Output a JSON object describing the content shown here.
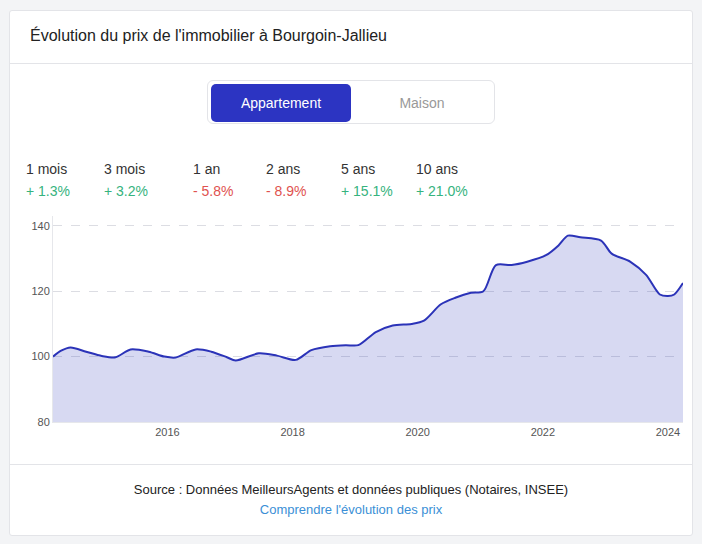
{
  "header": {
    "title": "Évolution du prix de l'immobilier à Bourgoin-Jallieu"
  },
  "tabs": {
    "items": [
      "Appartement",
      "Maison"
    ],
    "active": "Appartement"
  },
  "stats": [
    {
      "label": "1 mois",
      "value": "+ 1.3%"
    },
    {
      "label": "3 mois",
      "value": "+ 3.2%"
    },
    {
      "label": "1 an",
      "value": "- 5.8%"
    },
    {
      "label": "2 ans",
      "value": "- 8.9%"
    },
    {
      "label": "5 ans",
      "value": "+ 15.1%"
    },
    {
      "label": "10 ans",
      "value": "+ 21.0%"
    }
  ],
  "chart_data": {
    "type": "area",
    "x": [
      2014.17,
      2014.3,
      2014.45,
      2014.7,
      2014.95,
      2015.17,
      2015.41,
      2015.7,
      2015.95,
      2016.13,
      2016.45,
      2016.7,
      2016.95,
      2017.09,
      2017.46,
      2017.75,
      2018.05,
      2018.3,
      2018.6,
      2018.85,
      2019.05,
      2019.33,
      2019.6,
      2019.9,
      2020.1,
      2020.37,
      2020.6,
      2020.85,
      2021.05,
      2021.25,
      2021.5,
      2021.75,
      2022.05,
      2022.25,
      2022.4,
      2022.6,
      2022.93,
      2023.1,
      2023.4,
      2023.65,
      2023.87,
      2024.0,
      2024.1,
      2024.24
    ],
    "values": [
      100,
      101.8,
      102.8,
      101.5,
      100.2,
      99.8,
      102.2,
      101.5,
      100,
      99.7,
      102.2,
      101.5,
      99.8,
      98.8,
      101,
      100.3,
      99,
      102,
      103.2,
      103.5,
      103.5,
      107.5,
      109.5,
      110,
      111,
      116,
      118,
      119.5,
      120,
      128,
      128,
      129,
      131,
      134,
      137,
      136.5,
      135.5,
      131.5,
      129,
      125,
      119,
      118.5,
      119,
      122.5
    ],
    "color": "#2b33b8",
    "xlim": [
      2014.17,
      2024.24
    ],
    "ylim": [
      80,
      143
    ],
    "xticks": [
      2016,
      2018,
      2020,
      2022,
      2024
    ],
    "yticks": [
      80,
      100,
      120,
      140
    ],
    "grid": true
  },
  "footer": {
    "source": "Source : Données MeilleursAgents et données publiques (Notaires, INSEE)",
    "link": "Comprendre l'évolution des prix"
  }
}
